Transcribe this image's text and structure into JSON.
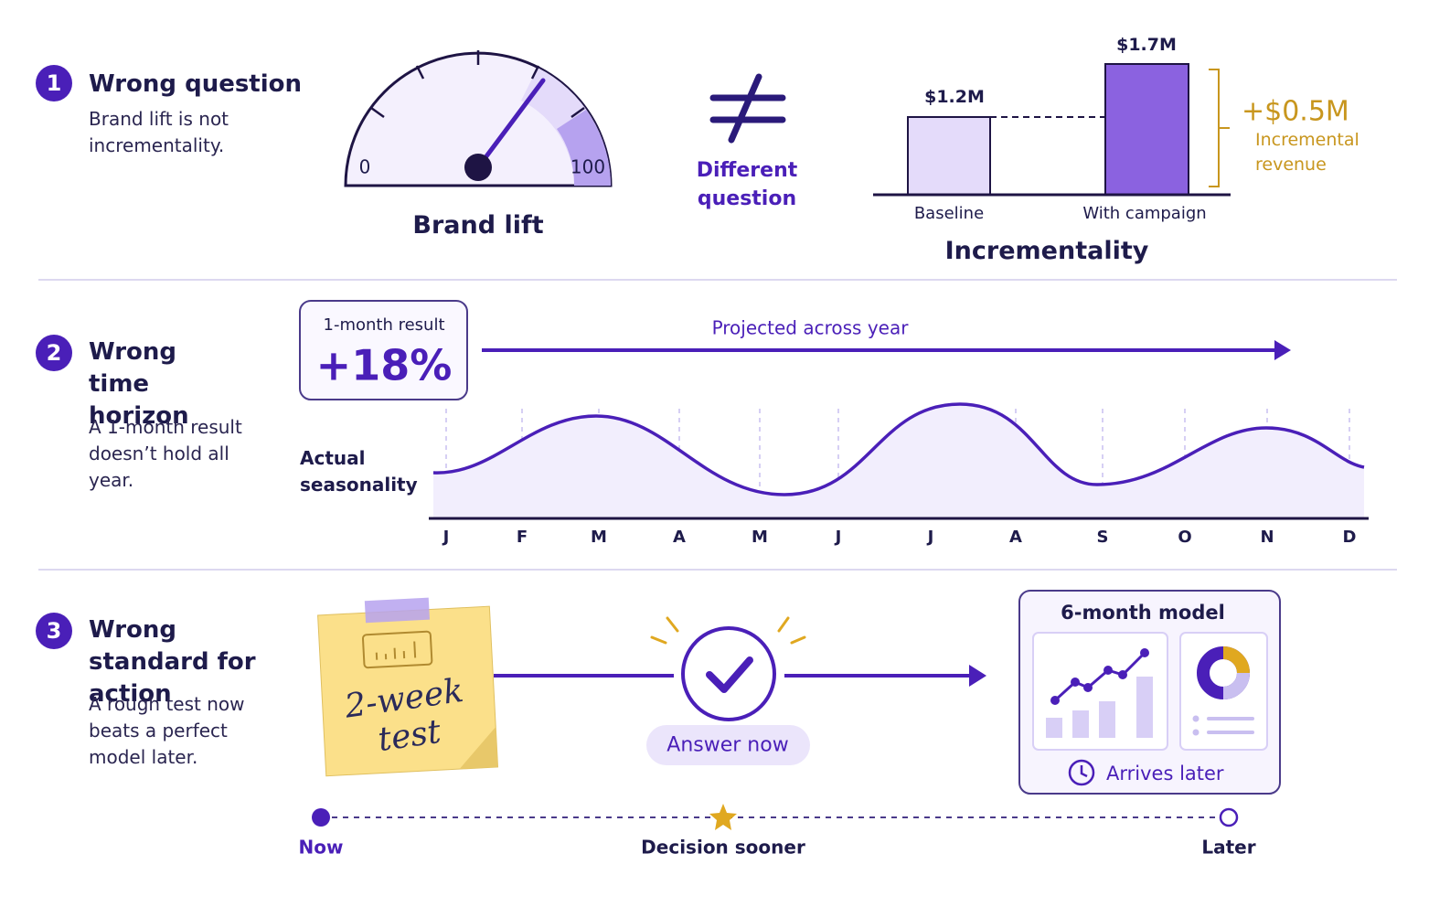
{
  "sections": [
    {
      "number": "1",
      "title": "Wrong question",
      "description": "Brand lift is not incrementality."
    },
    {
      "number": "2",
      "title": "Wrong time horizon",
      "description": "A 1-month result doesn’t hold all year."
    },
    {
      "number": "3",
      "title": "Wrong standard for action",
      "description": "A rough test now beats a perfect model later."
    }
  ],
  "gauge": {
    "min_label": "0",
    "max_label": "100",
    "label": "Brand lift"
  },
  "comparison": {
    "label": "Different question"
  },
  "incrementality": {
    "title": "Incrementality",
    "bars": [
      {
        "label": "Baseline",
        "value_label": "$1.2M"
      },
      {
        "label": "With campaign",
        "value_label": "$1.7M"
      }
    ],
    "delta": "+$0.5M",
    "delta_label": "Incremental revenue"
  },
  "horizon": {
    "card_title": "1-month result",
    "card_value": "+18%",
    "arrow_label": "Projected across year",
    "curve_label": "Actual seasonality",
    "months": [
      "J",
      "F",
      "M",
      "A",
      "M",
      "J",
      "J",
      "A",
      "S",
      "O",
      "N",
      "D"
    ]
  },
  "action": {
    "note": "2-week test",
    "answer": "Answer now",
    "model_title": "6-month model",
    "model_caption": "Arrives later",
    "timeline": [
      "Now",
      "Decision sooner",
      "Later"
    ]
  }
}
